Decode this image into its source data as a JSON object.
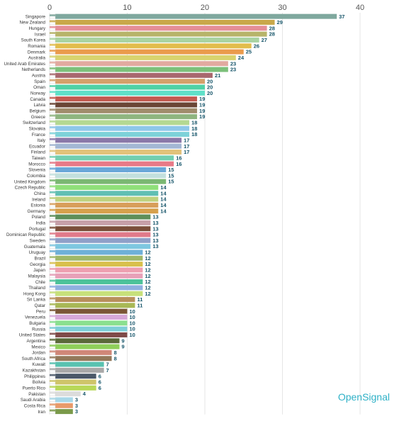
{
  "brand": "OpenSignal",
  "chart_data": {
    "type": "bar",
    "orientation": "horizontal",
    "title": "",
    "xlabel": "",
    "ylabel": "",
    "xlim": [
      0,
      40
    ],
    "x_ticks": [
      0,
      10,
      20,
      30,
      40
    ],
    "grid": true,
    "legend": "none",
    "categories": [
      "Singapore",
      "New Zealand",
      "Hungary",
      "Israel",
      "South Korea",
      "Romania",
      "Denmark",
      "Australia",
      "United Arab Emirates",
      "Netherlands",
      "Austria",
      "Spain",
      "Oman",
      "Norway",
      "Canada",
      "Latvia",
      "Belgium",
      "Greece",
      "Switzerland",
      "Slovakia",
      "France",
      "Italy",
      "Ecuador",
      "Finland",
      "Taiwan",
      "Morocco",
      "Slovenia",
      "Colombia",
      "United Kingdom",
      "Czech Republic",
      "China",
      "Ireland",
      "Estonia",
      "Germany",
      "Poland",
      "India",
      "Portugal",
      "Dominican Republic",
      "Sweden",
      "Guatemala",
      "Uruguay",
      "Brazil",
      "Georgia",
      "Japan",
      "Malaysia",
      "Chile",
      "Thailand",
      "Hong Kong",
      "Sri Lanka",
      "Qatar",
      "Peru",
      "Venezuela",
      "Bulgaria",
      "Russia",
      "United States",
      "Argentina",
      "Mexico",
      "Jordan",
      "South Africa",
      "Kuwait",
      "Kazakhstan",
      "Philippines",
      "Bolivia",
      "Puerto Rico",
      "Pakistan",
      "Saudi Arabia",
      "Costa Rica",
      "Iran"
    ],
    "values": [
      37,
      29,
      28,
      28,
      27,
      26,
      25,
      24,
      23,
      23,
      21,
      20,
      20,
      20,
      19,
      19,
      19,
      19,
      18,
      18,
      18,
      17,
      17,
      17,
      16,
      16,
      15,
      15,
      15,
      14,
      14,
      14,
      14,
      14,
      13,
      13,
      13,
      13,
      13,
      13,
      12,
      12,
      12,
      12,
      12,
      12,
      12,
      12,
      11,
      11,
      10,
      10,
      10,
      10,
      10,
      9,
      9,
      8,
      8,
      7,
      7,
      6,
      6,
      6,
      4,
      3,
      3,
      3
    ],
    "colors": [
      "#7fa89e",
      "#c9a84a",
      "#e58e97",
      "#b7b46a",
      "#a9d3a2",
      "#e2bd4d",
      "#ea9b4c",
      "#d8d36e",
      "#e2aaa0",
      "#7cc07a",
      "#a8686e",
      "#d4a06a",
      "#4fd1a6",
      "#5fe0c8",
      "#c25a50",
      "#6b4636",
      "#a08c6c",
      "#8fb580",
      "#b4d892",
      "#8ec7ea",
      "#7dd2d9",
      "#8a78a8",
      "#a3b7d4",
      "#e2c27a",
      "#73cfb0",
      "#e87a88",
      "#6aa7d8",
      "#c3e0de",
      "#7ab872",
      "#8fe07a",
      "#60bfb3",
      "#bfd27f",
      "#d89e5a",
      "#d6a04c",
      "#5e8f5a",
      "#c69fa8",
      "#7a4e3a",
      "#e07a8a",
      "#8fa0c8",
      "#7ec7e0",
      "#6eb0d8",
      "#9fb86a",
      "#d8c04c",
      "#ee9fb0",
      "#e8a0b8",
      "#4cc29a",
      "#8fb0e0",
      "#c7e07a",
      "#b8905c",
      "#a8b855",
      "#7a5636",
      "#d6a8d8",
      "#8ae08f",
      "#7fcfd8",
      "#7e4a48",
      "#5a6a3a",
      "#8ecf5a",
      "#d08778",
      "#93785a",
      "#58c2b0",
      "#a8a8a8",
      "#4a5868",
      "#cfc56a",
      "#b8d858",
      "#dcdcdc",
      "#a8d8e8",
      "#e89a6a",
      "#7a9a4a"
    ]
  }
}
